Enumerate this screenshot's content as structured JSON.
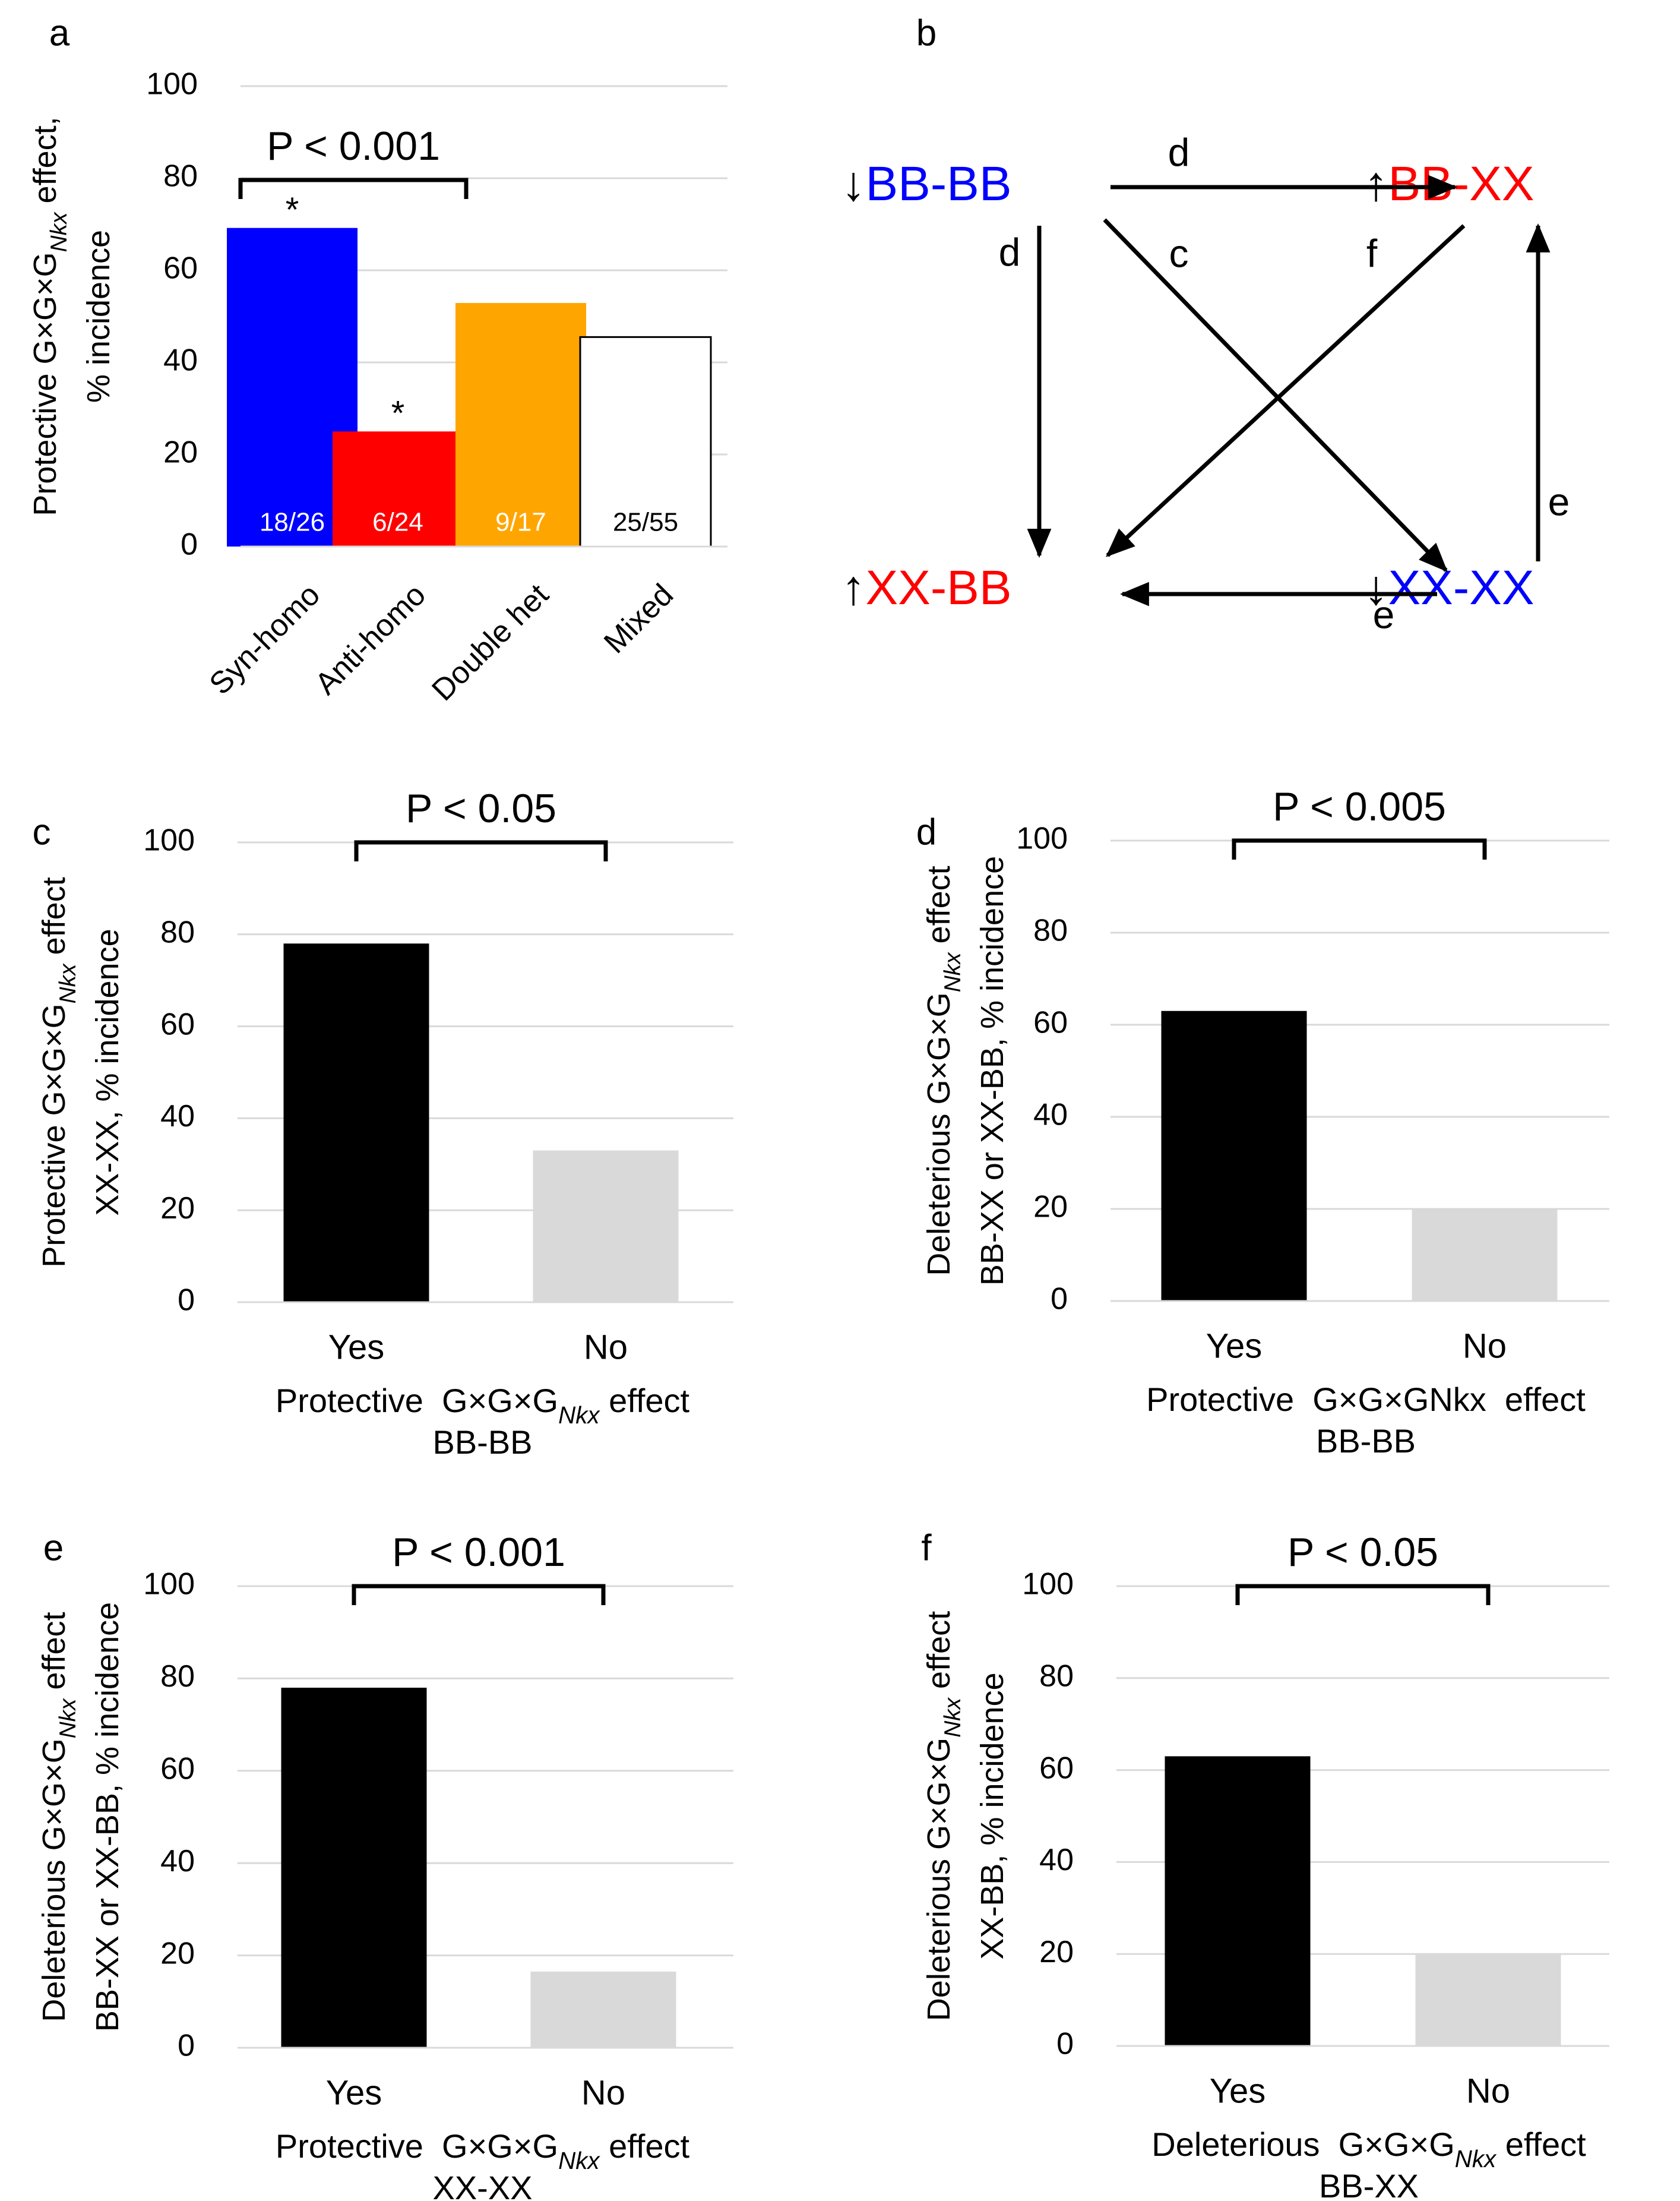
{
  "panels": [
    {
      "id": "a",
      "label": "a",
      "ylabel": [
        "Protective G×G×G<Nkx> effect,",
        "% incidence"
      ],
      "xlabel": [],
      "significance": "P < 0.001",
      "chart_data": {
        "type": "bar",
        "categories": [
          "Syn-homo",
          "Anti-homo",
          "Double het",
          "Mixed"
        ],
        "values": [
          69.2,
          25.0,
          52.9,
          45.5
        ],
        "bar_labels": [
          "18/26",
          "6/24",
          "9/17",
          "25/55"
        ],
        "stars": [
          "*",
          "*",
          "",
          ""
        ],
        "colors": [
          "#0000ff",
          "#ff0000",
          "#ffa500",
          "#ffffff"
        ],
        "label_colors": [
          "#ffffff",
          "#ffffff",
          "#ffffff",
          "#000000"
        ],
        "ylim": [
          0,
          100
        ],
        "yticks": [
          0,
          20,
          40,
          60,
          80,
          100
        ],
        "grid": true
      }
    },
    {
      "id": "c",
      "label": "c",
      "ylabel": [
        "Protective G×G×G<Nkx> effect",
        "XX-XX, % incidence"
      ],
      "xlabel": [
        "Protective  G×G×G<Nkx> effect",
        "BB-BB"
      ],
      "significance": "P < 0.05",
      "chart_data": {
        "type": "bar",
        "categories": [
          "Yes",
          "No"
        ],
        "values": [
          78,
          33
        ],
        "colors": [
          "#000000",
          "#d9d9d9"
        ],
        "ylim": [
          0,
          100
        ],
        "yticks": [
          0,
          20,
          40,
          60,
          80,
          100
        ],
        "grid": true
      }
    },
    {
      "id": "d",
      "label": "d",
      "ylabel": [
        "Deleterious G×G×G<Nkx> effect",
        "BB-XX or XX-BB, % incidence"
      ],
      "xlabel": [
        "Protective  G×G×GNkx  effect",
        "BB-BB"
      ],
      "significance": "P < 0.005",
      "chart_data": {
        "type": "bar",
        "categories": [
          "Yes",
          "No"
        ],
        "values": [
          63,
          20
        ],
        "colors": [
          "#000000",
          "#d9d9d9"
        ],
        "ylim": [
          0,
          100
        ],
        "yticks": [
          0,
          20,
          40,
          60,
          80,
          100
        ],
        "grid": true
      }
    },
    {
      "id": "e",
      "label": "e",
      "ylabel": [
        "Deleterious G×G×G<Nkx> effect",
        "BB-XX or XX-BB, % incidence"
      ],
      "xlabel": [
        "Protective  G×G×G<Nkx> effect",
        "XX-XX"
      ],
      "significance": "P < 0.001",
      "chart_data": {
        "type": "bar",
        "categories": [
          "Yes",
          "No"
        ],
        "values": [
          78,
          16.5
        ],
        "colors": [
          "#000000",
          "#d9d9d9"
        ],
        "ylim": [
          0,
          100
        ],
        "yticks": [
          0,
          20,
          40,
          60,
          80,
          100
        ],
        "grid": true
      }
    },
    {
      "id": "f",
      "label": "f",
      "ylabel": [
        "Deleterious G×G×G<Nkx> effect",
        "XX-BB, % incidence"
      ],
      "xlabel": [
        "Deleterious  G×G×G<Nkx> effect",
        "BB-XX"
      ],
      "significance": "P < 0.05",
      "chart_data": {
        "type": "bar",
        "categories": [
          "Yes",
          "No"
        ],
        "values": [
          63,
          20
        ],
        "colors": [
          "#000000",
          "#d9d9d9"
        ],
        "ylim": [
          0,
          100
        ],
        "yticks": [
          0,
          20,
          40,
          60,
          80,
          100
        ],
        "grid": true
      }
    }
  ],
  "diagram": {
    "label": "b",
    "nodes": {
      "bbbb": {
        "arrow": "↓",
        "text": "BB-BB",
        "color": "#0000ff"
      },
      "bbxx": {
        "arrow": "↑",
        "text": "BB-XX",
        "color": "#ff0000"
      },
      "xxbb": {
        "arrow": "↑",
        "text": "XX-BB",
        "color": "#ff0000"
      },
      "xxxx": {
        "arrow": "↓",
        "text": "XX-XX",
        "color": "#0000ff"
      }
    },
    "edges": [
      {
        "from": "bbbb",
        "to": "bbxx",
        "label": "d"
      },
      {
        "from": "bbbb",
        "to": "xxbb",
        "label": "d"
      },
      {
        "from": "bbbb",
        "to": "xxxx",
        "label": "c"
      },
      {
        "from": "bbxx",
        "to": "xxbb",
        "label": "f"
      },
      {
        "from": "xxxx",
        "to": "bbxx",
        "label": "e"
      },
      {
        "from": "xxxx",
        "to": "xxbb",
        "label": "e"
      }
    ]
  }
}
